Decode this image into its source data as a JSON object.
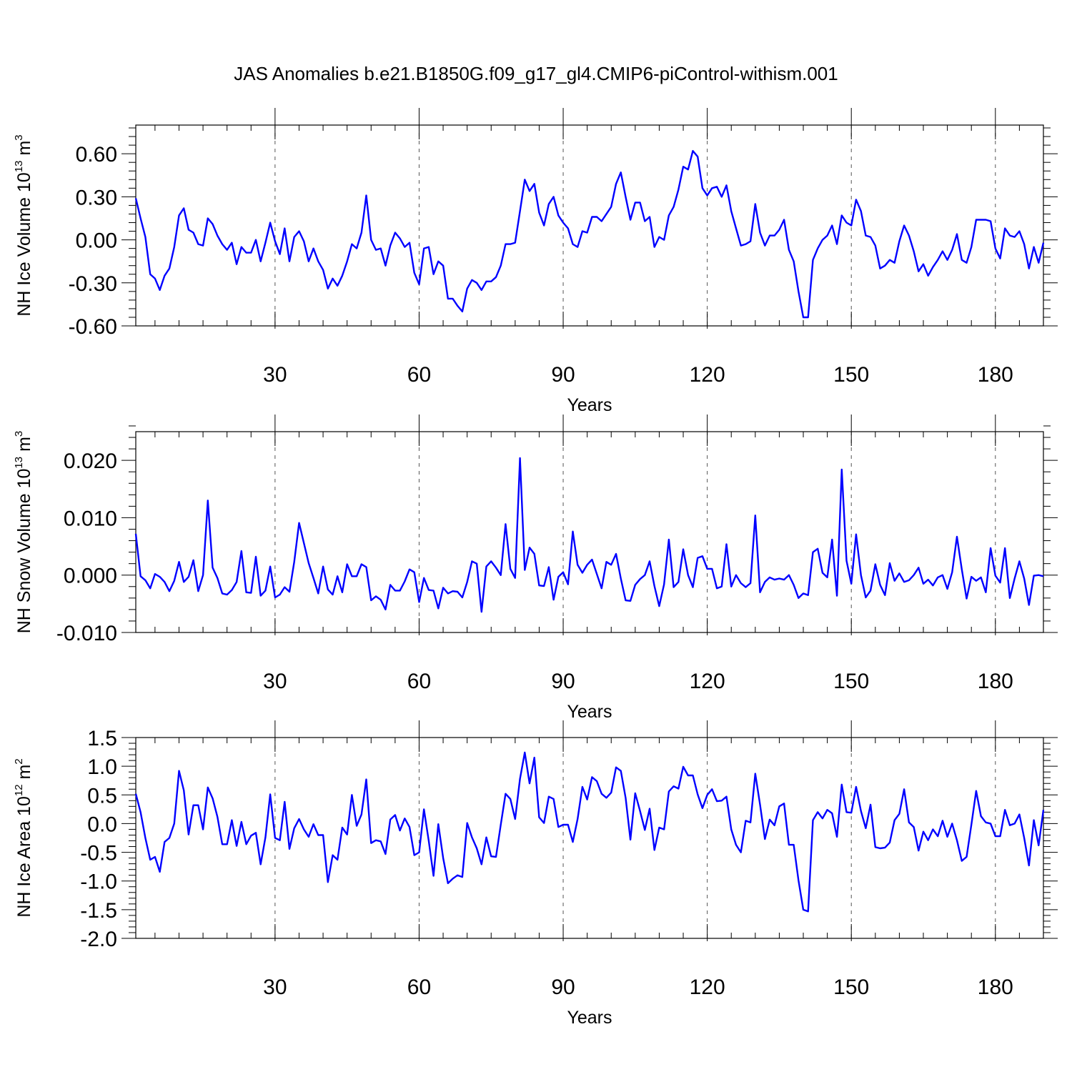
{
  "title": "JAS Anomalies b.e21.B1850G.f09_g17_gl4.CMIP6-piControl-withism.001",
  "line_color": "#0000ff",
  "chart_data": [
    {
      "type": "line",
      "series_name": "NH Ice Volume",
      "ylabel": {
        "base": "NH Ice Volume 10",
        "exp1": "13",
        "unit": " m",
        "exp2": "3"
      },
      "xlabel": "Years",
      "xlim": [
        1,
        190
      ],
      "xticks": [
        30,
        60,
        90,
        120,
        150,
        180
      ],
      "xtick_labels": [
        "30",
        "60",
        "90",
        "120",
        "150",
        "180"
      ],
      "ylim": [
        -0.6,
        0.8
      ],
      "yticks": [
        -0.6,
        -0.3,
        0.0,
        0.3,
        0.6
      ],
      "ytick_labels": [
        "-0.60",
        "-0.30",
        "0.00",
        "0.30",
        "0.60"
      ],
      "grid": "vertical dashed at major x ticks",
      "x_start": 1,
      "values": [
        0.29,
        0.15,
        0.02,
        -0.24,
        -0.27,
        -0.35,
        -0.25,
        -0.2,
        -0.05,
        0.17,
        0.22,
        0.07,
        0.05,
        -0.03,
        -0.04,
        0.15,
        0.11,
        0.03,
        -0.03,
        -0.07,
        -0.02,
        -0.17,
        -0.05,
        -0.09,
        -0.09,
        0.0,
        -0.15,
        -0.02,
        0.12,
        -0.01,
        -0.1,
        0.08,
        -0.15,
        0.02,
        0.06,
        -0.01,
        -0.15,
        -0.06,
        -0.15,
        -0.21,
        -0.34,
        -0.27,
        -0.32,
        -0.25,
        -0.15,
        -0.03,
        -0.06,
        0.05,
        0.31,
        0.0,
        -0.07,
        -0.06,
        -0.18,
        -0.04,
        0.05,
        0.01,
        -0.05,
        -0.02,
        -0.23,
        -0.31,
        -0.06,
        -0.05,
        -0.24,
        -0.15,
        -0.18,
        -0.41,
        -0.41,
        -0.46,
        -0.5,
        -0.34,
        -0.28,
        -0.3,
        -0.35,
        -0.29,
        -0.29,
        -0.26,
        -0.18,
        -0.03,
        -0.03,
        -0.02,
        0.2,
        0.42,
        0.34,
        0.39,
        0.19,
        0.1,
        0.25,
        0.3,
        0.17,
        0.12,
        0.08,
        -0.03,
        -0.05,
        0.06,
        0.05,
        0.16,
        0.16,
        0.13,
        0.18,
        0.23,
        0.39,
        0.47,
        0.3,
        0.14,
        0.26,
        0.26,
        0.13,
        0.16,
        -0.05,
        0.02,
        0.0,
        0.17,
        0.23,
        0.35,
        0.51,
        0.49,
        0.62,
        0.58,
        0.36,
        0.31,
        0.36,
        0.37,
        0.3,
        0.38,
        0.2,
        0.08,
        -0.04,
        -0.03,
        -0.01,
        0.25,
        0.05,
        -0.04,
        0.03,
        0.03,
        0.07,
        0.14,
        -0.07,
        -0.15,
        -0.36,
        -0.54,
        -0.54,
        -0.14,
        -0.06,
        0.0,
        0.03,
        0.1,
        -0.03,
        0.17,
        0.12,
        0.1,
        0.28,
        0.2,
        0.03,
        0.02,
        -0.04,
        -0.2,
        -0.18,
        -0.14,
        -0.16,
        -0.01,
        0.1,
        0.03,
        -0.08,
        -0.22,
        -0.17,
        -0.25,
        -0.19,
        -0.14,
        -0.08,
        -0.14,
        -0.07,
        0.04,
        -0.14,
        -0.16,
        -0.05,
        0.14,
        0.14,
        0.14,
        0.13,
        -0.06,
        -0.13,
        0.08,
        0.03,
        0.02,
        0.06,
        -0.03,
        -0.2,
        -0.05,
        -0.16,
        -0.02
      ]
    },
    {
      "type": "line",
      "series_name": "NH Snow Volume",
      "ylabel": {
        "base": "NH Snow Volume 10",
        "exp1": "13",
        "unit": " m",
        "exp2": "3"
      },
      "xlabel": "Years",
      "xlim": [
        1,
        190
      ],
      "xticks": [
        30,
        60,
        90,
        120,
        150,
        180
      ],
      "xtick_labels": [
        "30",
        "60",
        "90",
        "120",
        "150",
        "180"
      ],
      "ylim": [
        -0.01,
        0.025
      ],
      "yticks": [
        -0.01,
        0.0,
        0.01,
        0.02
      ],
      "ytick_labels": [
        "-0.010",
        "0.000",
        "0.010",
        "0.020"
      ],
      "grid": "vertical dashed at major x ticks",
      "x_start": 1,
      "values": [
        0.0072,
        -0.0002,
        -0.0009,
        -0.0023,
        0.0002,
        -0.0003,
        -0.0012,
        -0.0028,
        -0.001,
        0.0023,
        -0.0012,
        -0.0003,
        0.0026,
        -0.0028,
        0.0,
        0.013,
        0.0013,
        -0.0005,
        -0.0032,
        -0.0034,
        -0.0026,
        -0.0012,
        0.0042,
        -0.003,
        -0.0031,
        0.0032,
        -0.0036,
        -0.0027,
        0.0015,
        -0.0039,
        -0.0034,
        -0.0021,
        -0.0029,
        0.0023,
        0.0091,
        0.0056,
        0.0021,
        -0.0005,
        -0.0032,
        0.0015,
        -0.0025,
        -0.0034,
        -0.0002,
        -0.003,
        0.0019,
        -0.0002,
        -0.0002,
        0.0019,
        0.0014,
        -0.0044,
        -0.0037,
        -0.0043,
        -0.006,
        -0.0017,
        -0.0027,
        -0.0027,
        -0.0011,
        0.001,
        0.0005,
        -0.0047,
        -0.0005,
        -0.0026,
        -0.0027,
        -0.0058,
        -0.0022,
        -0.0032,
        -0.0028,
        -0.0029,
        -0.0039,
        -0.0012,
        0.0024,
        0.002,
        -0.0064,
        0.0015,
        0.0024,
        0.0013,
        0.0,
        0.0089,
        0.0011,
        -0.0005,
        0.0204,
        0.0009,
        0.0048,
        0.0037,
        -0.0018,
        -0.0019,
        0.0014,
        -0.0043,
        -0.0003,
        0.0005,
        -0.0016,
        0.0076,
        0.0018,
        0.0004,
        0.0018,
        0.0027,
        0.0002,
        -0.0023,
        0.0023,
        0.0018,
        0.0037,
        -0.0006,
        -0.0044,
        -0.0045,
        -0.0017,
        -0.0007,
        0.0,
        0.0024,
        -0.0019,
        -0.0054,
        -0.0016,
        0.0062,
        -0.0021,
        -0.0012,
        0.0045,
        0.0,
        -0.0021,
        0.003,
        0.0033,
        0.0011,
        0.0011,
        -0.0023,
        -0.002,
        0.0054,
        -0.002,
        0.0,
        -0.0014,
        -0.0021,
        -0.0014,
        0.0104,
        -0.003,
        -0.0012,
        -0.0004,
        -0.0008,
        -0.0006,
        -0.0008,
        0.0,
        -0.0017,
        -0.004,
        -0.0032,
        -0.0035,
        0.004,
        0.0046,
        0.0004,
        -0.0004,
        0.0062,
        -0.0036,
        0.0184,
        0.0025,
        -0.0015,
        0.0071,
        0.0,
        -0.0039,
        -0.0027,
        0.0019,
        -0.0017,
        -0.0035,
        0.0021,
        -0.001,
        0.0003,
        -0.0012,
        -0.0009,
        0.0,
        0.0013,
        -0.0015,
        -0.0008,
        -0.0018,
        -0.0004,
        0.0,
        -0.0024,
        0.0005,
        0.0067,
        0.001,
        -0.0041,
        -0.0003,
        -0.001,
        -0.0004,
        -0.003,
        0.0047,
        -0.0001,
        -0.0013,
        0.0047,
        -0.004,
        -0.0006,
        0.0024,
        -0.0006,
        -0.0052,
        -0.0001,
        0.0,
        -0.0002
      ]
    },
    {
      "type": "line",
      "series_name": "NH Ice Area",
      "ylabel": {
        "base": "NH Ice Area 10",
        "exp1": "12",
        "unit": " m",
        "exp2": "2"
      },
      "xlabel": "Years",
      "xlim": [
        1,
        190
      ],
      "xticks": [
        30,
        60,
        90,
        120,
        150,
        180
      ],
      "xtick_labels": [
        "30",
        "60",
        "90",
        "120",
        "150",
        "180"
      ],
      "ylim": [
        -2.0,
        1.5
      ],
      "yticks": [
        -2.0,
        -1.5,
        -1.0,
        -0.5,
        0.0,
        0.5,
        1.0,
        1.5
      ],
      "ytick_labels": [
        "-2.0",
        "-1.5",
        "-1.0",
        "-0.5",
        "0.0",
        "0.5",
        "1.0",
        "1.5"
      ],
      "grid": "vertical dashed at major x ticks",
      "x_start": 1,
      "values": [
        0.52,
        0.2,
        -0.25,
        -0.63,
        -0.58,
        -0.84,
        -0.32,
        -0.25,
        0.0,
        0.92,
        0.58,
        -0.19,
        0.32,
        0.32,
        -0.1,
        0.63,
        0.44,
        0.12,
        -0.36,
        -0.36,
        0.06,
        -0.39,
        0.03,
        -0.36,
        -0.21,
        -0.16,
        -0.71,
        -0.24,
        0.51,
        -0.25,
        -0.29,
        0.38,
        -0.44,
        -0.08,
        0.08,
        -0.1,
        -0.23,
        -0.01,
        -0.2,
        -0.2,
        -1.02,
        -0.55,
        -0.63,
        -0.07,
        -0.19,
        0.5,
        -0.04,
        0.16,
        0.77,
        -0.34,
        -0.29,
        -0.31,
        -0.53,
        0.07,
        0.15,
        -0.12,
        0.09,
        -0.06,
        -0.55,
        -0.5,
        0.25,
        -0.3,
        -0.91,
        -0.01,
        -0.6,
        -1.04,
        -0.96,
        -0.9,
        -0.93,
        0.01,
        -0.24,
        -0.43,
        -0.71,
        -0.24,
        -0.57,
        -0.58,
        -0.02,
        0.52,
        0.43,
        0.08,
        0.78,
        1.24,
        0.7,
        1.15,
        0.11,
        0.01,
        0.47,
        0.43,
        -0.06,
        -0.02,
        -0.02,
        -0.32,
        0.08,
        0.64,
        0.42,
        0.81,
        0.74,
        0.52,
        0.45,
        0.54,
        0.98,
        0.92,
        0.45,
        -0.28,
        0.53,
        0.22,
        -0.11,
        0.26,
        -0.46,
        -0.07,
        -0.1,
        0.56,
        0.65,
        0.61,
        0.99,
        0.84,
        0.84,
        0.51,
        0.27,
        0.5,
        0.6,
        0.39,
        0.4,
        0.47,
        -0.1,
        -0.37,
        -0.5,
        0.05,
        0.02,
        0.87,
        0.33,
        -0.27,
        0.07,
        -0.03,
        0.3,
        0.35,
        -0.37,
        -0.37,
        -0.99,
        -1.5,
        -1.53,
        0.06,
        0.2,
        0.09,
        0.24,
        0.18,
        -0.23,
        0.68,
        0.2,
        0.19,
        0.64,
        0.22,
        -0.08,
        0.33,
        -0.41,
        -0.43,
        -0.42,
        -0.33,
        0.06,
        0.17,
        0.6,
        0.02,
        -0.06,
        -0.47,
        -0.14,
        -0.29,
        -0.1,
        -0.22,
        0.05,
        -0.23,
        0.0,
        -0.29,
        -0.65,
        -0.58,
        -0.02,
        0.57,
        0.13,
        0.02,
        0.0,
        -0.22,
        -0.22,
        0.24,
        -0.03,
        0.0,
        0.16,
        -0.25,
        -0.73,
        0.06,
        -0.38,
        0.24
      ]
    }
  ]
}
